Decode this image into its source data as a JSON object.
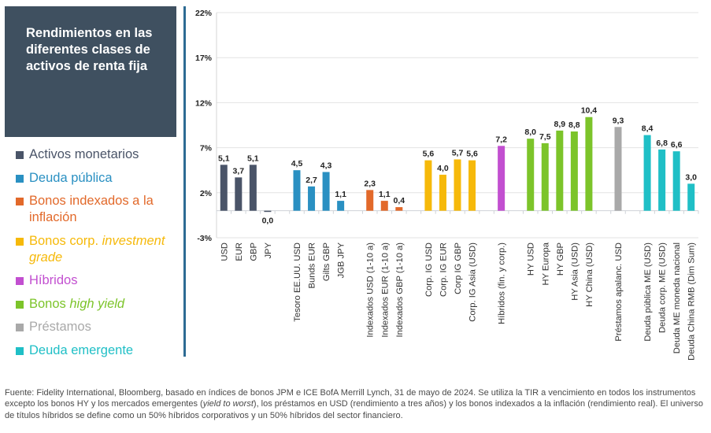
{
  "title": "Rendimientos en las diferentes clases de activos de renta fija",
  "legend": [
    {
      "key": "monetarios",
      "pre": "Activos monetarios",
      "ital": "",
      "post": "",
      "color": "#4a5468"
    },
    {
      "key": "publica",
      "pre": "Deuda pública",
      "ital": "",
      "post": "",
      "color": "#2a90c2"
    },
    {
      "key": "indexados",
      "pre": "Bonos indexados a la inflación",
      "ital": "",
      "post": "",
      "color": "#e2692a"
    },
    {
      "key": "ig",
      "pre": "Bonos corp. ",
      "ital": "investment grade",
      "post": "",
      "color": "#f6b90a"
    },
    {
      "key": "hibridos",
      "pre": "Híbridos",
      "ital": "",
      "post": "",
      "color": "#c24fd0"
    },
    {
      "key": "hy",
      "pre": "Bonos ",
      "ital": "high yield",
      "post": "",
      "color": "#7cc42a"
    },
    {
      "key": "prestamos",
      "pre": "Préstamos",
      "ital": "",
      "post": "",
      "color": "#a9a9a9"
    },
    {
      "key": "emergente",
      "pre": "Deuda emergente",
      "ital": "",
      "post": "",
      "color": "#1fbfc6"
    }
  ],
  "chart_data": {
    "type": "bar",
    "title": "Rendimientos en las diferentes clases de activos de renta fija",
    "xlabel": "",
    "ylabel": "",
    "ylim": [
      -3,
      22
    ],
    "yticks": [
      22,
      17,
      12,
      7,
      2,
      -3
    ],
    "ytick_labels": [
      "22%",
      "17%",
      "12%",
      "7%",
      "2%",
      "-3%"
    ],
    "grid": true,
    "legend_position": "left",
    "groups": [
      {
        "name": "Activos monetarios",
        "color": "#4a5468",
        "categories": [
          "USD",
          "EUR",
          "GBP",
          "JPY"
        ],
        "values": [
          5.1,
          3.7,
          5.1,
          0.0
        ],
        "labels": [
          "5,1",
          "3,7",
          "5,1",
          "0,0"
        ]
      },
      {
        "name": "Deuda pública",
        "color": "#2a90c2",
        "categories": [
          "Tesoro EE.UU. USD",
          "Bunds EUR",
          "Gilts GBP",
          "JGB JPY"
        ],
        "values": [
          4.5,
          2.7,
          4.3,
          1.1
        ],
        "labels": [
          "4,5",
          "2,7",
          "4,3",
          "1,1"
        ]
      },
      {
        "name": "Bonos indexados a la inflación",
        "color": "#e2692a",
        "categories": [
          "Indexados USD (1-10 a)",
          "Indexados EUR (1-10 a)",
          "Indexados GBP (1-10 a)"
        ],
        "values": [
          2.3,
          1.1,
          0.4
        ],
        "labels": [
          "2,3",
          "1,1",
          "0,4"
        ]
      },
      {
        "name": "Bonos corp. investment grade",
        "color": "#f6b90a",
        "categories": [
          "Corp. IG USD",
          "Corp. IG EUR",
          "Corp IG GBP",
          "Corp. IG Asia (USD)"
        ],
        "values": [
          5.6,
          4.0,
          5.7,
          5.6
        ],
        "labels": [
          "5,6",
          "4,0",
          "5,7",
          "5,6"
        ]
      },
      {
        "name": "Híbridos",
        "color": "#c24fd0",
        "categories": [
          "Híbridos (fin. y corp.)"
        ],
        "values": [
          7.2
        ],
        "labels": [
          "7,2"
        ]
      },
      {
        "name": "Bonos high yield",
        "color": "#7cc42a",
        "categories": [
          "HY USD",
          "HY Europa",
          "HY GBP",
          "HY Asia (USD)",
          "HY China (USD)"
        ],
        "values": [
          8.0,
          7.5,
          8.9,
          8.8,
          10.4
        ],
        "labels": [
          "8,0",
          "7,5",
          "8,9",
          "8,8",
          "10,4"
        ]
      },
      {
        "name": "Préstamos",
        "color": "#a9a9a9",
        "categories": [
          "Préstamos apalanc. USD"
        ],
        "values": [
          9.3
        ],
        "labels": [
          "9,3"
        ]
      },
      {
        "name": "Deuda emergente",
        "color": "#1fbfc6",
        "categories": [
          "Deuda pública ME (USD)",
          "Deuda corp. ME (USD)",
          "Deuda ME moneda nacional",
          "Deuda China RMB (Dim Sum)"
        ],
        "values": [
          8.4,
          6.8,
          6.6,
          3.0
        ],
        "labels": [
          "8,4",
          "6,8",
          "6,6",
          "3,0"
        ]
      }
    ]
  },
  "footer": {
    "part1": "Fuente: Fidelity International, Bloomberg, basado en índices de bonos JPM e ICE BofA Merrill Lynch, 31 de mayo de 2024. Se utiliza la TIR a vencimiento en todos los instrumentos excepto los bonos HY y los mercados emergentes (",
    "italic": "yield to worst",
    "part2": "), los préstamos en USD (rendimiento a tres años) y los bonos indexados a la inflación (rendimiento real). El universo de títulos híbridos se define como un 50% híbridos corporativos y un 50% híbridos del sector financiero."
  }
}
